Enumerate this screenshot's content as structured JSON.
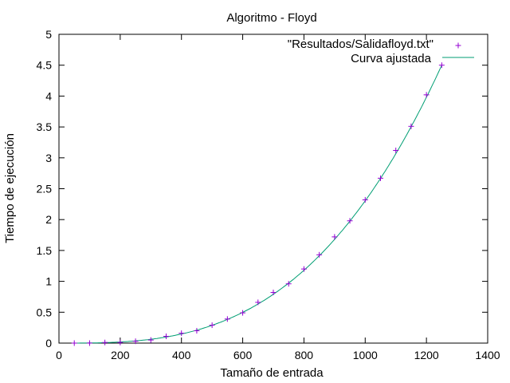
{
  "chart_data": {
    "type": "scatter",
    "title": "Algoritmo - Floyd",
    "xlabel": "Tamaño de entrada",
    "ylabel": "Tiempo de ejecución",
    "xlim": [
      0,
      1400
    ],
    "ylim": [
      0,
      5
    ],
    "xticks": [
      0,
      200,
      400,
      600,
      800,
      1000,
      1200,
      1400
    ],
    "yticks": [
      0,
      0.5,
      1,
      1.5,
      2,
      2.5,
      3,
      3.5,
      4,
      4.5,
      5
    ],
    "xtick_labels": [
      "0",
      "200",
      "400",
      "600",
      "800",
      "1000",
      "1200",
      "1400"
    ],
    "ytick_labels": [
      "0",
      "0.5",
      "1",
      "1.5",
      "2",
      "2.5",
      "3",
      "3.5",
      "4",
      "4.5",
      "5"
    ],
    "grid": false,
    "legend_position": "top-right",
    "series": [
      {
        "name": "\"Resultados/Salidafloyd.txt\"",
        "kind": "points",
        "marker": "plus",
        "color": "#9400d3",
        "x": [
          50,
          100,
          150,
          200,
          250,
          300,
          350,
          400,
          450,
          500,
          550,
          600,
          650,
          700,
          750,
          800,
          850,
          900,
          950,
          1000,
          1050,
          1100,
          1150,
          1200,
          1250
        ],
        "y": [
          0.0,
          0.0,
          0.01,
          0.01,
          0.03,
          0.05,
          0.11,
          0.16,
          0.2,
          0.29,
          0.39,
          0.49,
          0.66,
          0.82,
          0.96,
          1.2,
          1.43,
          1.72,
          1.98,
          2.32,
          2.67,
          3.12,
          3.51,
          4.02,
          4.5
        ]
      },
      {
        "name": "Curva ajustada",
        "kind": "line",
        "color": "#009e73",
        "model": "cubic",
        "coefficients": [
          0.0,
          0.0,
          0.0,
          2.304e-09
        ],
        "x_range": [
          50,
          1250
        ]
      }
    ]
  }
}
